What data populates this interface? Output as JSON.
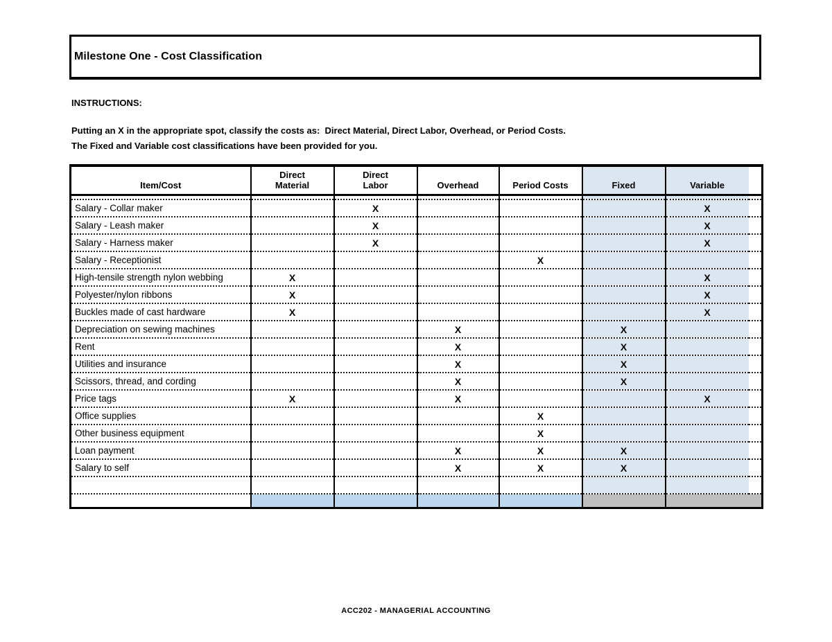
{
  "title_box": {
    "title": "Milestone One - Cost Classification"
  },
  "instructions": {
    "heading": "INSTRUCTIONS:",
    "line1": "Putting an X in the appropriate spot, classify the costs as:  Direct Material, Direct Labor, Overhead, or Period Costs.",
    "line2": "The Fixed and Variable cost classifications have been provided for you."
  },
  "table": {
    "mark_symbol": "X",
    "columns": [
      {
        "key": "item_cost",
        "label": "Item/Cost",
        "label_lines": [
          "Item/Cost"
        ],
        "highlight": false
      },
      {
        "key": "direct_material",
        "label": "Direct Material",
        "label_lines": [
          "Direct",
          "Material"
        ],
        "highlight": false
      },
      {
        "key": "direct_labor",
        "label": "Direct Labor",
        "label_lines": [
          "Direct",
          "Labor"
        ],
        "highlight": false
      },
      {
        "key": "overhead",
        "label": "Overhead",
        "label_lines": [
          "Overhead"
        ],
        "highlight": false
      },
      {
        "key": "period_costs",
        "label": "Period Costs",
        "label_lines": [
          "Period Costs"
        ],
        "highlight": false
      },
      {
        "key": "fixed",
        "label": "Fixed",
        "label_lines": [
          "Fixed"
        ],
        "highlight": true
      },
      {
        "key": "variable",
        "label": "Variable",
        "label_lines": [
          "Variable"
        ],
        "highlight": true
      }
    ],
    "rows": [
      {
        "label": "Salary - Collar maker",
        "marks": [
          "",
          "X",
          "",
          "",
          "",
          "X"
        ]
      },
      {
        "label": "Salary - Leash maker",
        "marks": [
          "",
          "X",
          "",
          "",
          "",
          "X"
        ]
      },
      {
        "label": "Salary - Harness maker",
        "marks": [
          "",
          "X",
          "",
          "",
          "",
          "X"
        ]
      },
      {
        "label": "Salary - Receptionist",
        "marks": [
          "",
          "",
          "",
          "X",
          "",
          ""
        ]
      },
      {
        "label": "High-tensile strength nylon webbing",
        "marks": [
          "X",
          "",
          "",
          "",
          "",
          "X"
        ]
      },
      {
        "label": "Polyester/nylon ribbons",
        "marks": [
          "X",
          "",
          "",
          "",
          "",
          "X"
        ]
      },
      {
        "label": "Buckles made of cast hardware",
        "marks": [
          "X",
          "",
          "",
          "",
          "",
          "X"
        ]
      },
      {
        "label": "Depreciation on sewing machines",
        "marks": [
          "",
          "",
          "X",
          "",
          "X",
          ""
        ]
      },
      {
        "label": "Rent",
        "marks": [
          "",
          "",
          "X",
          "",
          "X",
          ""
        ]
      },
      {
        "label": "Utilities and insurance",
        "marks": [
          "",
          "",
          "X",
          "",
          "X",
          ""
        ]
      },
      {
        "label": "Scissors, thread, and cording",
        "marks": [
          "",
          "",
          "X",
          "",
          "X",
          ""
        ]
      },
      {
        "label": "Price tags",
        "marks": [
          "X",
          "",
          "X",
          "",
          "",
          "X"
        ]
      },
      {
        "label": "Office supplies",
        "marks": [
          "",
          "",
          "",
          "X",
          "",
          ""
        ]
      },
      {
        "label": "Other business equipment",
        "marks": [
          "",
          "",
          "",
          "X",
          "",
          ""
        ]
      },
      {
        "label": "Loan payment",
        "marks": [
          "",
          "",
          "X",
          "X",
          "X",
          ""
        ]
      },
      {
        "label": "Salary to self",
        "marks": [
          "",
          "",
          "X",
          "X",
          "X",
          ""
        ]
      }
    ],
    "trailing_empty_rows": 1
  },
  "colors": {
    "column_highlight": "#dce6f1",
    "bottom_row_blue": "#bdd7ee",
    "bottom_row_gray": "#bfbfbf",
    "border": "#000000"
  },
  "footer": {
    "text": "ACC202 - MANAGERIAL ACCOUNTING"
  }
}
